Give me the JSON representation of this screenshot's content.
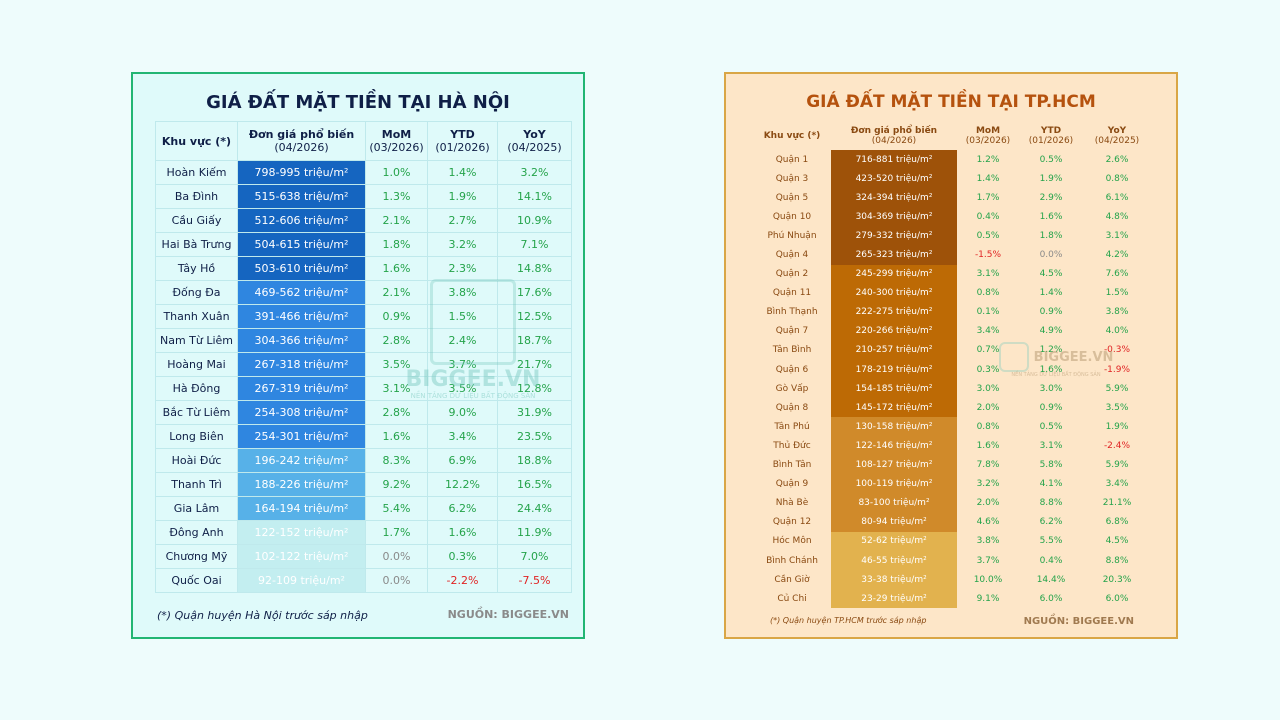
{
  "hanoi": {
    "title": "GIÁ ĐẤT MẶT TIỀN TẠI HÀ NỘI",
    "headers": {
      "area": "Khu vực (*)",
      "price_main": "Đơn giá phổ biến",
      "price_sub": "(04/2026)",
      "mom_main": "MoM",
      "mom_sub": "(03/2026)",
      "ytd_main": "YTD",
      "ytd_sub": "(01/2026)",
      "yoy_main": "YoY",
      "yoy_sub": "(04/2025)"
    },
    "rows": [
      {
        "area": "Hoàn Kiếm",
        "price": "798-995 triệu/m²",
        "mom": "1.0%",
        "ytd": "1.4%",
        "yoy": "3.2%",
        "color": "#1565c0"
      },
      {
        "area": "Ba Đình",
        "price": "515-638 triệu/m²",
        "mom": "1.3%",
        "ytd": "1.9%",
        "yoy": "14.1%",
        "color": "#1565c0"
      },
      {
        "area": "Cầu Giấy",
        "price": "512-606 triệu/m²",
        "mom": "2.1%",
        "ytd": "2.7%",
        "yoy": "10.9%",
        "color": "#1565c0"
      },
      {
        "area": "Hai Bà Trưng",
        "price": "504-615 triệu/m²",
        "mom": "1.8%",
        "ytd": "3.2%",
        "yoy": "7.1%",
        "color": "#1565c0"
      },
      {
        "area": "Tây Hồ",
        "price": "503-610 triệu/m²",
        "mom": "1.6%",
        "ytd": "2.3%",
        "yoy": "14.8%",
        "color": "#1565c0"
      },
      {
        "area": "Đống Đa",
        "price": "469-562 triệu/m²",
        "mom": "2.1%",
        "ytd": "3.8%",
        "yoy": "17.6%",
        "color": "#2f86e0"
      },
      {
        "area": "Thanh Xuân",
        "price": "391-466 triệu/m²",
        "mom": "0.9%",
        "ytd": "1.5%",
        "yoy": "12.5%",
        "color": "#2f86e0"
      },
      {
        "area": "Nam Từ Liêm",
        "price": "304-366 triệu/m²",
        "mom": "2.8%",
        "ytd": "2.4%",
        "yoy": "18.7%",
        "color": "#2f86e0"
      },
      {
        "area": "Hoàng Mai",
        "price": "267-318 triệu/m²",
        "mom": "3.5%",
        "ytd": "3.7%",
        "yoy": "21.7%",
        "color": "#2f86e0"
      },
      {
        "area": "Hà Đông",
        "price": "267-319 triệu/m²",
        "mom": "3.1%",
        "ytd": "3.5%",
        "yoy": "12.8%",
        "color": "#2f86e0"
      },
      {
        "area": "Bắc Từ Liêm",
        "price": "254-308 triệu/m²",
        "mom": "2.8%",
        "ytd": "9.0%",
        "yoy": "31.9%",
        "color": "#2f86e0"
      },
      {
        "area": "Long Biên",
        "price": "254-301 triệu/m²",
        "mom": "1.6%",
        "ytd": "3.4%",
        "yoy": "23.5%",
        "color": "#2f86e0"
      },
      {
        "area": "Hoài Đức",
        "price": "196-242 triệu/m²",
        "mom": "8.3%",
        "ytd": "6.9%",
        "yoy": "18.8%",
        "color": "#57b1e8"
      },
      {
        "area": "Thanh Trì",
        "price": "188-226 triệu/m²",
        "mom": "9.2%",
        "ytd": "12.2%",
        "yoy": "16.5%",
        "color": "#57b1e8"
      },
      {
        "area": "Gia Lâm",
        "price": "164-194 triệu/m²",
        "mom": "5.4%",
        "ytd": "6.2%",
        "yoy": "24.4%",
        "color": "#57b1e8"
      },
      {
        "area": "Đông Anh",
        "price": "122-152 triệu/m²",
        "mom": "1.7%",
        "ytd": "1.6%",
        "yoy": "11.9%",
        "color": "#c3eef0"
      },
      {
        "area": "Chương Mỹ",
        "price": "102-122 triệu/m²",
        "mom": "0.0%",
        "ytd": "0.3%",
        "yoy": "7.0%",
        "color": "#c3eef0"
      },
      {
        "area": "Quốc Oai",
        "price": "92-109 triệu/m²",
        "mom": "0.0%",
        "ytd": "-2.2%",
        "yoy": "-7.5%",
        "color": "#c3eef0"
      }
    ],
    "note": "(*) Quận huyện Hà Nội trước sáp nhập",
    "source": "NGUỒN: BIGGEE.VN",
    "watermark": {
      "name": "BIGGEE.VN",
      "tagline": "NỀN TẢNG DỮ LIỆU BẤT ĐỘNG SẢN"
    }
  },
  "hcm": {
    "title": "GIÁ ĐẤT MẶT TIỀN TẠI TP.HCM",
    "headers": {
      "area": "Khu vực (*)",
      "price_main": "Đơn giá phổ biến",
      "price_sub": "(04/2026)",
      "mom_main": "MoM",
      "mom_sub": "(03/2026)",
      "ytd_main": "YTD",
      "ytd_sub": "(01/2026)",
      "yoy_main": "YoY",
      "yoy_sub": "(04/2025)"
    },
    "rows": [
      {
        "area": "Quận 1",
        "price": "716-881 triệu/m²",
        "mom": "1.2%",
        "ytd": "0.5%",
        "yoy": "2.6%",
        "color": "#9e5209"
      },
      {
        "area": "Quận 3",
        "price": "423-520 triệu/m²",
        "mom": "1.4%",
        "ytd": "1.9%",
        "yoy": "0.8%",
        "color": "#9e5209"
      },
      {
        "area": "Quận 5",
        "price": "324-394 triệu/m²",
        "mom": "1.7%",
        "ytd": "2.9%",
        "yoy": "6.1%",
        "color": "#9e5209"
      },
      {
        "area": "Quận 10",
        "price": "304-369 triệu/m²",
        "mom": "0.4%",
        "ytd": "1.6%",
        "yoy": "4.8%",
        "color": "#9e5209"
      },
      {
        "area": "Phú Nhuận",
        "price": "279-332 triệu/m²",
        "mom": "0.5%",
        "ytd": "1.8%",
        "yoy": "3.1%",
        "color": "#9e5209"
      },
      {
        "area": "Quận 4",
        "price": "265-323 triệu/m²",
        "mom": "-1.5%",
        "ytd": "0.0%",
        "yoy": "4.2%",
        "color": "#9e5209"
      },
      {
        "area": "Quận 2",
        "price": "245-299 triệu/m²",
        "mom": "3.1%",
        "ytd": "4.5%",
        "yoy": "7.6%",
        "color": "#bd6a05"
      },
      {
        "area": "Quận 11",
        "price": "240-300 triệu/m²",
        "mom": "0.8%",
        "ytd": "1.4%",
        "yoy": "1.5%",
        "color": "#bd6a05"
      },
      {
        "area": "Bình Thạnh",
        "price": "222-275 triệu/m²",
        "mom": "0.1%",
        "ytd": "0.9%",
        "yoy": "3.8%",
        "color": "#bd6a05"
      },
      {
        "area": "Quận 7",
        "price": "220-266 triệu/m²",
        "mom": "3.4%",
        "ytd": "4.9%",
        "yoy": "4.0%",
        "color": "#bd6a05"
      },
      {
        "area": "Tân Bình",
        "price": "210-257 triệu/m²",
        "mom": "0.7%",
        "ytd": "1.2%",
        "yoy": "-0.3%",
        "color": "#bd6a05"
      },
      {
        "area": "Quận 6",
        "price": "178-219 triệu/m²",
        "mom": "0.3%",
        "ytd": "1.6%",
        "yoy": "-1.9%",
        "color": "#bd6a05"
      },
      {
        "area": "Gò Vấp",
        "price": "154-185 triệu/m²",
        "mom": "3.0%",
        "ytd": "3.0%",
        "yoy": "5.9%",
        "color": "#bd6a05"
      },
      {
        "area": "Quận 8",
        "price": "145-172 triệu/m²",
        "mom": "2.0%",
        "ytd": "0.9%",
        "yoy": "3.5%",
        "color": "#bd6a05"
      },
      {
        "area": "Tân Phú",
        "price": "130-158 triệu/m²",
        "mom": "0.8%",
        "ytd": "0.5%",
        "yoy": "1.9%",
        "color": "#d08a2a"
      },
      {
        "area": "Thủ Đức",
        "price": "122-146 triệu/m²",
        "mom": "1.6%",
        "ytd": "3.1%",
        "yoy": "-2.4%",
        "color": "#d08a2a"
      },
      {
        "area": "Bình Tân",
        "price": "108-127 triệu/m²",
        "mom": "7.8%",
        "ytd": "5.8%",
        "yoy": "5.9%",
        "color": "#d08a2a"
      },
      {
        "area": "Quận 9",
        "price": "100-119 triệu/m²",
        "mom": "3.2%",
        "ytd": "4.1%",
        "yoy": "3.4%",
        "color": "#d08a2a"
      },
      {
        "area": "Nhà Bè",
        "price": "83-100 triệu/m²",
        "mom": "2.0%",
        "ytd": "8.8%",
        "yoy": "21.1%",
        "color": "#d08a2a"
      },
      {
        "area": "Quận 12",
        "price": "80-94 triệu/m²",
        "mom": "4.6%",
        "ytd": "6.2%",
        "yoy": "6.8%",
        "color": "#d08a2a"
      },
      {
        "area": "Hóc Môn",
        "price": "52-62 triệu/m²",
        "mom": "3.8%",
        "ytd": "5.5%",
        "yoy": "4.5%",
        "color": "#e2b24e"
      },
      {
        "area": "Bình Chánh",
        "price": "46-55 triệu/m²",
        "mom": "3.7%",
        "ytd": "0.4%",
        "yoy": "8.8%",
        "color": "#e2b24e"
      },
      {
        "area": "Cần Giờ",
        "price": "33-38 triệu/m²",
        "mom": "10.0%",
        "ytd": "14.4%",
        "yoy": "20.3%",
        "color": "#e2b24e"
      },
      {
        "area": "Củ Chi",
        "price": "23-29 triệu/m²",
        "mom": "9.1%",
        "ytd": "6.0%",
        "yoy": "6.0%",
        "color": "#e2b24e"
      }
    ],
    "note": "(*) Quận huyện TP.HCM trước sáp nhập",
    "source": "NGUỒN: BIGGEE.VN",
    "watermark": {
      "name": "BIGGEE.VN",
      "tagline": "NỀN TẢNG DỮ LIỆU BẤT ĐỘNG SẢN"
    }
  }
}
